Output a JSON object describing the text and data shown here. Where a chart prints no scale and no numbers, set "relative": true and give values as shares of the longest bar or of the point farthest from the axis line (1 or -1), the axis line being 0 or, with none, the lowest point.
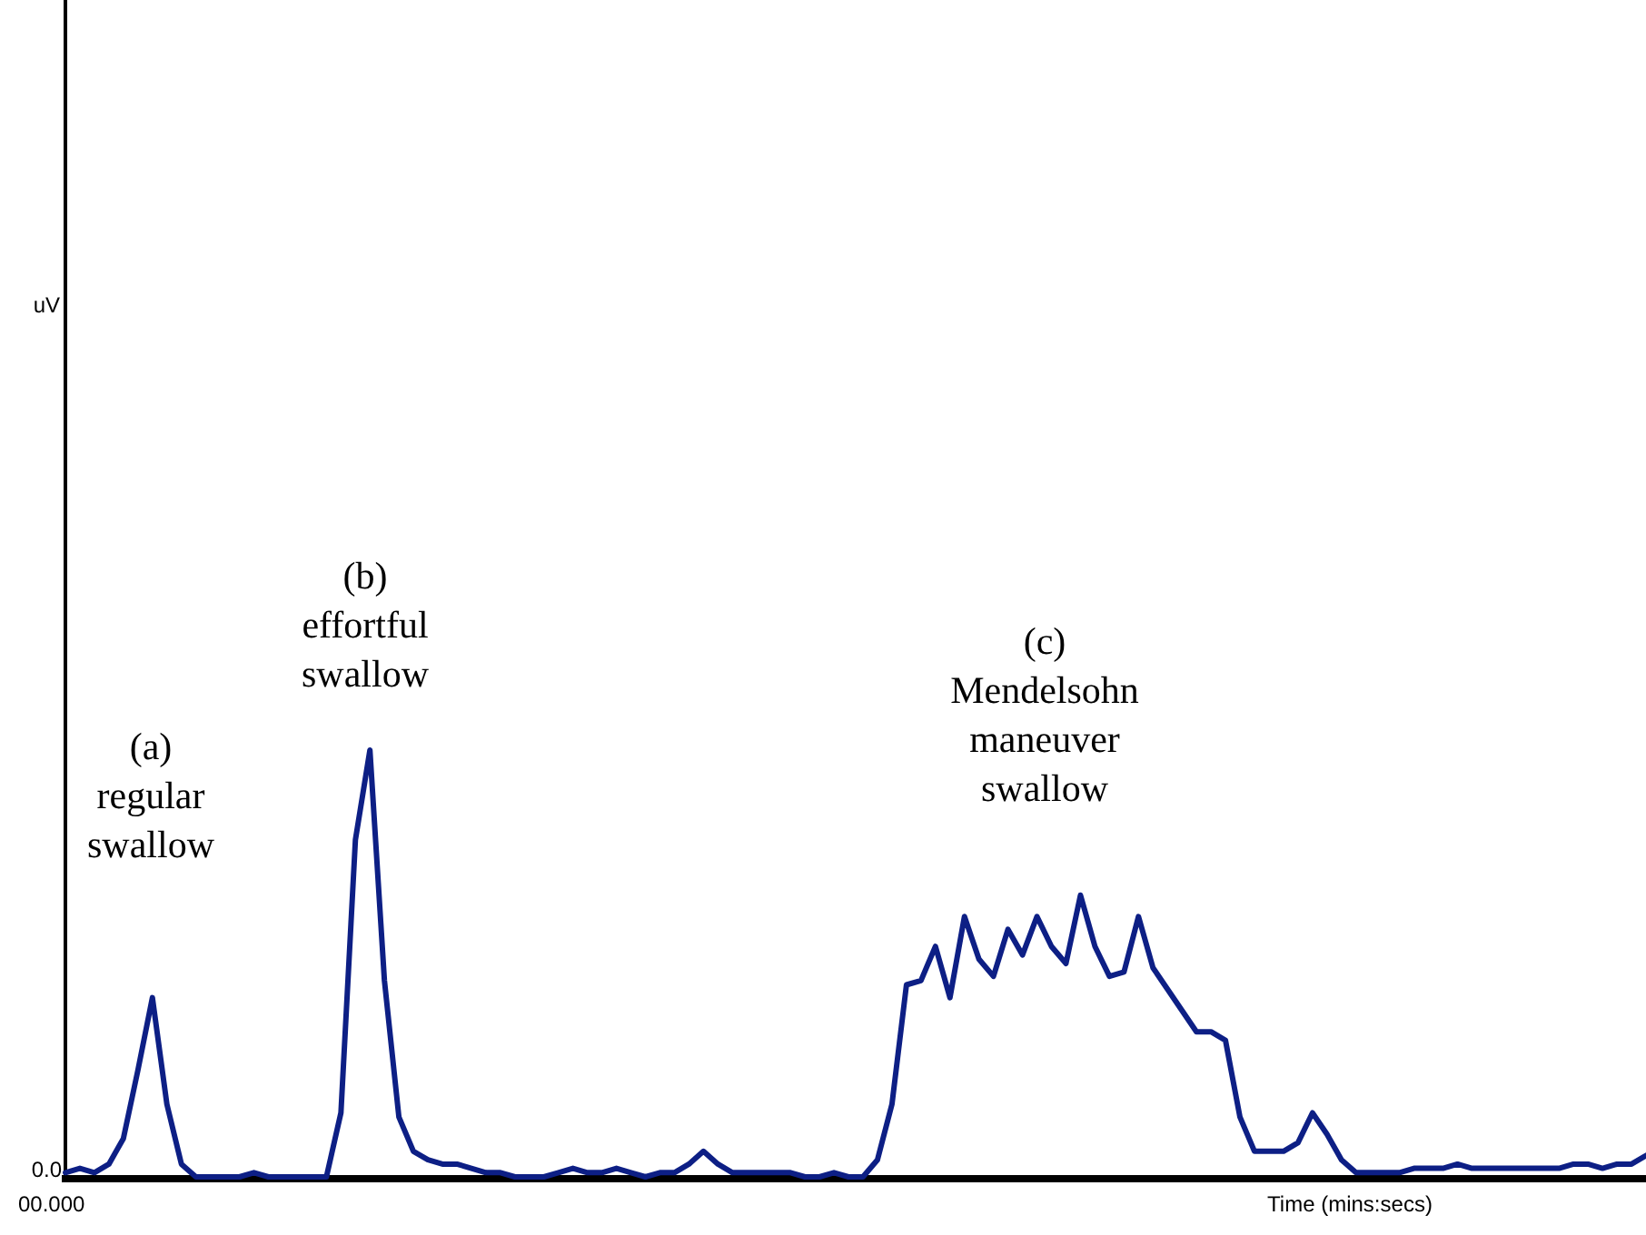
{
  "chart_data": {
    "type": "line",
    "relative": true,
    "xlabel": "Time (mins:secs)",
    "categories": [
      null,
      null,
      null,
      null,
      null,
      null,
      null,
      null,
      null,
      null,
      null,
      null,
      null,
      null,
      null,
      null,
      null,
      null,
      null,
      null,
      null,
      null,
      null,
      null,
      null,
      null,
      null,
      null,
      null,
      null,
      null,
      null,
      null,
      null,
      null,
      null,
      null,
      null,
      null,
      null,
      null,
      null,
      null,
      null,
      null,
      null,
      null,
      null,
      null,
      null,
      null,
      null,
      null,
      null,
      null,
      null,
      null,
      null,
      null,
      null,
      null,
      null,
      null,
      null,
      null,
      null,
      null,
      null,
      null,
      null,
      null,
      null,
      null,
      null,
      null,
      null,
      null,
      null,
      null,
      null,
      null,
      null,
      null,
      null,
      null,
      null,
      null,
      null,
      null,
      null,
      null,
      null,
      null,
      null,
      null,
      null,
      null,
      null,
      null,
      null,
      null,
      null,
      null,
      null,
      null,
      null,
      null,
      null,
      null,
      null
    ],
    "series": [
      {
        "color": "#0d1f85",
        "values": [
          0.01,
          0.02,
          0.01,
          0.03,
          0.09,
          0.25,
          0.42,
          0.17,
          0.03,
          0,
          0,
          0,
          0,
          0.01,
          0,
          0,
          0,
          0,
          0,
          0.15,
          0.79,
          1,
          0.46,
          0.14,
          0.06,
          0.04,
          0.03,
          0.03,
          0.02,
          0.01,
          0.01,
          0,
          0,
          0,
          0.01,
          0.02,
          0.01,
          0.01,
          0.02,
          0.01,
          0,
          0.01,
          0.01,
          0.03,
          0.06,
          0.03,
          0.01,
          0.01,
          0.01,
          0.01,
          0.01,
          0,
          0,
          0.01,
          0,
          0,
          0.04,
          0.17,
          0.45,
          0.46,
          0.54,
          0.42,
          0.61,
          0.51,
          0.47,
          0.58,
          0.52,
          0.61,
          0.54,
          0.5,
          0.66,
          0.54,
          0.47,
          0.48,
          0.61,
          0.49,
          0.44,
          0.39,
          0.34,
          0.34,
          0.32,
          0.14,
          0.06,
          0.06,
          0.06,
          0.08,
          0.15,
          0.1,
          0.04,
          0.01,
          0.01,
          0.01,
          0.01,
          0.02,
          0.02,
          0.02,
          0.03,
          0.02,
          0.02,
          0.02,
          0.02,
          0.02,
          0.02,
          0.02,
          0.03,
          0.03,
          0.02,
          0.03,
          0.03,
          0.05
        ]
      }
    ],
    "annotations": [
      "(a)\nregular\nswallow",
      "(b)\neffortful\nswallow",
      "(c)\nMendelsohn\nmaneuver\nswallow",
      "0.0",
      "00.000",
      "uV"
    ],
    "marker": "none",
    "line_style": "solid"
  }
}
